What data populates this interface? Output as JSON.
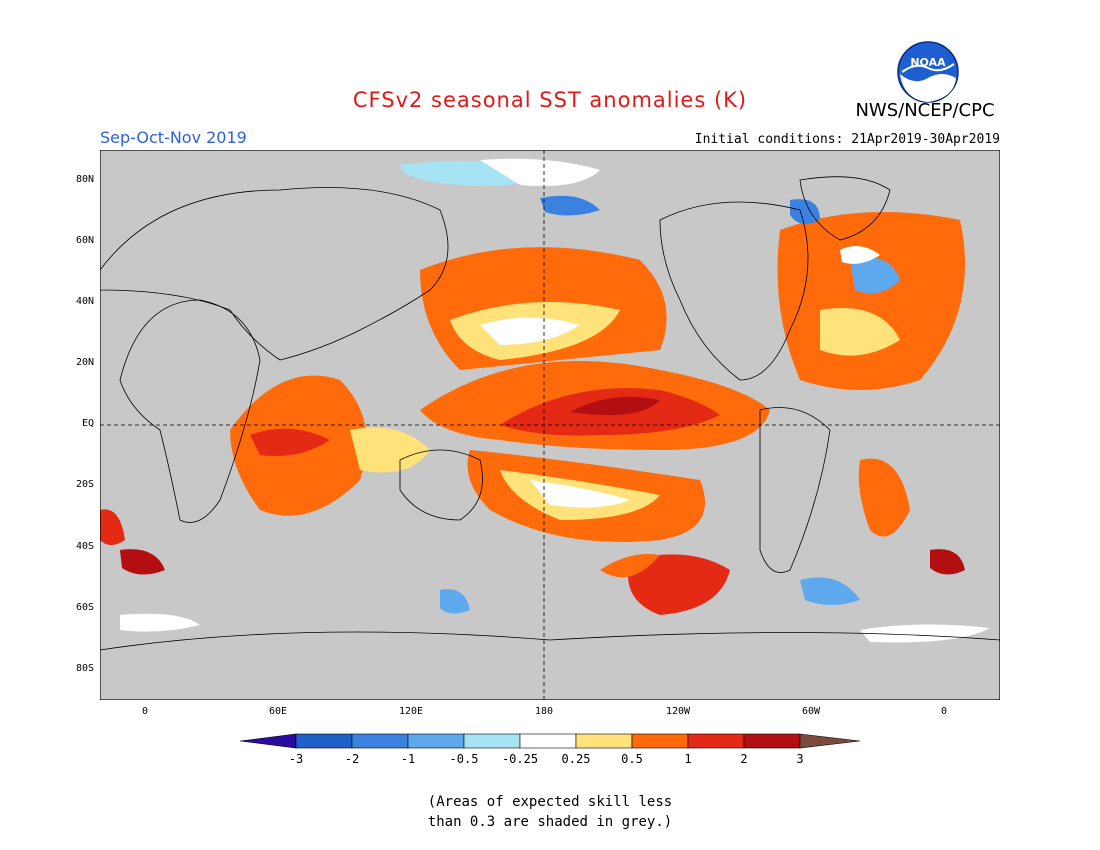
{
  "header": {
    "title": "CFSv2 seasonal SST anomalies (K)",
    "organization": "NWS/NCEP/CPC",
    "season": "Sep-Oct-Nov 2019",
    "initial_conditions": "Initial conditions: 21Apr2019-30Apr2019",
    "logo_text": "NOAA"
  },
  "colors": {
    "title": "#e01818",
    "season": "#3060d8",
    "land": "#c8c8c8",
    "neg3": "#2a0aa0",
    "neg2": "#1f5fc8",
    "neg1": "#3b82e0",
    "neg05": "#5ea8ee",
    "neg025": "#a6e4f4",
    "neutral": "#ffffff",
    "pos025": "#ffe27a",
    "pos05": "#ff6a0a",
    "pos1": "#e42a14",
    "pos2": "#b30e12",
    "pos3": "#7b4a3a"
  },
  "map": {
    "lat_labels": [
      "80N",
      "60N",
      "40N",
      "20N",
      "EQ",
      "20S",
      "40S",
      "60S",
      "80S"
    ],
    "lon_labels": [
      "0",
      "60E",
      "120E",
      "180",
      "120W",
      "60W",
      "0"
    ]
  },
  "colorbar": {
    "labels": [
      "-3",
      "-2",
      "-1",
      "-0.5",
      "-0.25",
      "0.25",
      "0.5",
      "1",
      "2",
      "3"
    ]
  },
  "note": {
    "line1": "(Areas of expected skill less",
    "line2": "than 0.3 are shaded in grey.)"
  }
}
